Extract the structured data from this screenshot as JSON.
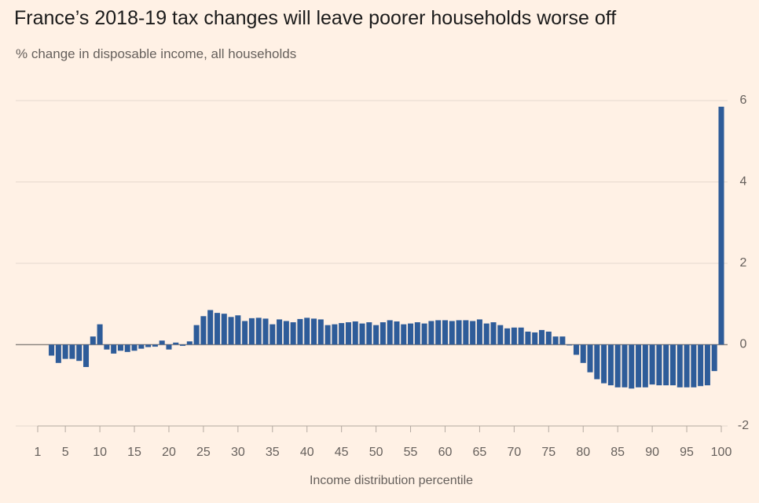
{
  "chart_data": {
    "type": "bar",
    "title": "France’s 2018-19 tax changes will leave poorer households worse off",
    "subtitle": "% change in disposable income, all households",
    "x_label": "Income distribution percentile",
    "x": [
      1,
      2,
      3,
      4,
      5,
      6,
      7,
      8,
      9,
      10,
      11,
      12,
      13,
      14,
      15,
      16,
      17,
      18,
      19,
      20,
      21,
      22,
      23,
      24,
      25,
      26,
      27,
      28,
      29,
      30,
      31,
      32,
      33,
      34,
      35,
      36,
      37,
      38,
      39,
      40,
      41,
      42,
      43,
      44,
      45,
      46,
      47,
      48,
      49,
      50,
      51,
      52,
      53,
      54,
      55,
      56,
      57,
      58,
      59,
      60,
      61,
      62,
      63,
      64,
      65,
      66,
      67,
      68,
      69,
      70,
      71,
      72,
      73,
      74,
      75,
      76,
      77,
      78,
      79,
      80,
      81,
      82,
      83,
      84,
      85,
      86,
      87,
      88,
      89,
      90,
      91,
      92,
      93,
      94,
      95,
      96,
      97,
      98,
      99,
      100
    ],
    "values": [
      0,
      0,
      -0.27,
      -0.45,
      -0.35,
      -0.35,
      -0.4,
      -0.55,
      0.2,
      0.5,
      -0.12,
      -0.22,
      -0.15,
      -0.18,
      -0.15,
      -0.1,
      -0.06,
      -0.05,
      0.1,
      -0.12,
      0.05,
      -0.03,
      0.08,
      0.48,
      0.7,
      0.85,
      0.78,
      0.76,
      0.68,
      0.72,
      0.58,
      0.65,
      0.66,
      0.64,
      0.5,
      0.62,
      0.58,
      0.55,
      0.63,
      0.66,
      0.64,
      0.62,
      0.48,
      0.5,
      0.53,
      0.55,
      0.57,
      0.52,
      0.55,
      0.48,
      0.55,
      0.6,
      0.57,
      0.5,
      0.52,
      0.55,
      0.52,
      0.58,
      0.6,
      0.6,
      0.58,
      0.6,
      0.6,
      0.58,
      0.62,
      0.52,
      0.55,
      0.48,
      0.4,
      0.42,
      0.42,
      0.32,
      0.3,
      0.36,
      0.32,
      0.2,
      0.2,
      -0.02,
      -0.25,
      -0.45,
      -0.68,
      -0.85,
      -0.95,
      -1.0,
      -1.05,
      -1.05,
      -1.08,
      -1.05,
      -1.05,
      -0.98,
      -1.0,
      -1.0,
      -1.0,
      -1.05,
      -1.05,
      -1.05,
      -1.02,
      -1.0,
      -0.65,
      5.85
    ],
    "color": "#2e5c99",
    "xlim": [
      1,
      100
    ],
    "xticks": [
      1,
      5,
      10,
      15,
      20,
      25,
      30,
      35,
      40,
      45,
      50,
      55,
      60,
      65,
      70,
      75,
      80,
      85,
      90,
      95,
      100
    ],
    "ylim": [
      -2,
      6
    ],
    "yticks": [
      -2,
      0,
      2,
      4,
      6
    ],
    "y_axis_side": "right",
    "grid": true
  }
}
